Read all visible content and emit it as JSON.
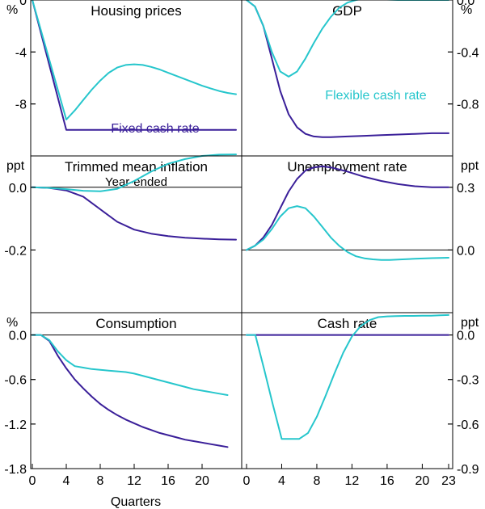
{
  "colors": {
    "fixed": "#3a1f99",
    "flexible": "#26c6cc"
  },
  "x_axis": {
    "label": "Quarters",
    "left_ticks": [
      "0",
      "4",
      "8",
      "12",
      "16",
      "20"
    ],
    "right_ticks": [
      "0",
      "4",
      "8",
      "12",
      "16",
      "20",
      "23"
    ]
  },
  "chart_data": [
    {
      "type": "line",
      "title": "Housing prices",
      "subtitle": "",
      "unit": "%",
      "unit_side": "left",
      "ylim": [
        -12,
        0
      ],
      "yticks": [
        0,
        -4,
        -8
      ],
      "ytick_labels": [
        "0",
        "-4",
        "-8"
      ],
      "xlim": [
        0,
        24
      ],
      "series": [
        {
          "name": "Fixed cash rate",
          "x": [
            0,
            1,
            2,
            3,
            4,
            5,
            6,
            8,
            10,
            12,
            14,
            16,
            18,
            20,
            22,
            24
          ],
          "values": [
            0,
            -2.5,
            -5,
            -7.5,
            -10,
            -10,
            -10,
            -10,
            -10,
            -10,
            -10,
            -10,
            -10,
            -10,
            -10,
            -10
          ]
        },
        {
          "name": "Flexible cash rate",
          "x": [
            0,
            1,
            2,
            3,
            4,
            5,
            6,
            7,
            8,
            9,
            10,
            11,
            12,
            13,
            14,
            15,
            16,
            17,
            18,
            19,
            20,
            21,
            22,
            23,
            24
          ],
          "values": [
            0,
            -2.3,
            -4.6,
            -6.9,
            -9.2,
            -8.5,
            -7.7,
            -6.9,
            -6.2,
            -5.6,
            -5.2,
            -5.0,
            -4.95,
            -5.0,
            -5.15,
            -5.35,
            -5.6,
            -5.85,
            -6.1,
            -6.35,
            -6.6,
            -6.8,
            -7.0,
            -7.15,
            -7.25
          ]
        }
      ],
      "annotations": [
        {
          "text": "Fixed cash rate",
          "series": "Fixed cash rate"
        }
      ]
    },
    {
      "type": "line",
      "title": "GDP",
      "subtitle": "",
      "unit": "%",
      "unit_side": "right",
      "ylim": [
        -1.2,
        0
      ],
      "yticks": [
        0,
        -0.4,
        -0.8
      ],
      "ytick_labels": [
        "0.0",
        "-0.4",
        "-0.8"
      ],
      "xlim": [
        0,
        24
      ],
      "series": [
        {
          "name": "Fixed cash rate",
          "x": [
            0,
            1,
            2,
            3,
            4,
            5,
            6,
            7,
            8,
            9,
            10,
            12,
            14,
            16,
            18,
            20,
            22,
            24
          ],
          "values": [
            0,
            -0.05,
            -0.2,
            -0.45,
            -0.7,
            -0.88,
            -0.98,
            -1.03,
            -1.05,
            -1.055,
            -1.055,
            -1.05,
            -1.045,
            -1.04,
            -1.035,
            -1.03,
            -1.025,
            -1.025
          ]
        },
        {
          "name": "Flexible cash rate",
          "x": [
            0,
            1,
            2,
            3,
            4,
            5,
            6,
            7,
            8,
            9,
            10,
            11,
            12,
            13,
            14,
            15,
            16,
            18,
            20,
            22,
            24
          ],
          "values": [
            0,
            -0.05,
            -0.2,
            -0.4,
            -0.55,
            -0.59,
            -0.55,
            -0.45,
            -0.33,
            -0.22,
            -0.13,
            -0.06,
            -0.02,
            0,
            0.01,
            0.01,
            0.005,
            0,
            0,
            0,
            0
          ]
        }
      ],
      "annotations": [
        {
          "text": "Flexible cash rate",
          "series": "Flexible cash rate"
        }
      ]
    },
    {
      "type": "line",
      "title": "Trimmed mean inflation",
      "subtitle": "Year-ended",
      "unit": "ppt",
      "unit_side": "left",
      "ylim": [
        -0.4,
        0.1
      ],
      "yticks": [
        0,
        -0.2
      ],
      "ytick_labels": [
        "0.0",
        "-0.2"
      ],
      "xlim": [
        0,
        24
      ],
      "series": [
        {
          "name": "Fixed cash rate",
          "x": [
            0,
            2,
            4,
            6,
            8,
            10,
            12,
            14,
            16,
            18,
            20,
            22,
            24
          ],
          "values": [
            0,
            -0.002,
            -0.01,
            -0.03,
            -0.07,
            -0.11,
            -0.135,
            -0.148,
            -0.156,
            -0.161,
            -0.164,
            -0.166,
            -0.167
          ]
        },
        {
          "name": "Flexible cash rate",
          "x": [
            0,
            2,
            4,
            6,
            8,
            10,
            12,
            14,
            16,
            18,
            20,
            22,
            24
          ],
          "values": [
            0,
            -0.002,
            -0.006,
            -0.011,
            -0.013,
            -0.005,
            0.02,
            0.05,
            0.075,
            0.09,
            0.1,
            0.104,
            0.105
          ]
        }
      ],
      "annotations": []
    },
    {
      "type": "line",
      "title": "Unemployment rate",
      "subtitle": "",
      "unit": "ppt",
      "unit_side": "right",
      "ylim": [
        -0.3,
        0.45
      ],
      "yticks": [
        0.3,
        0
      ],
      "ytick_labels": [
        "0.3",
        "0.0"
      ],
      "xlim": [
        0,
        24
      ],
      "series": [
        {
          "name": "Fixed cash rate",
          "x": [
            0,
            1,
            2,
            3,
            4,
            5,
            6,
            7,
            8,
            9,
            10,
            12,
            14,
            16,
            18,
            20,
            22,
            24
          ],
          "values": [
            0,
            0.02,
            0.06,
            0.12,
            0.2,
            0.28,
            0.34,
            0.38,
            0.395,
            0.4,
            0.395,
            0.375,
            0.35,
            0.33,
            0.315,
            0.305,
            0.3,
            0.3
          ]
        },
        {
          "name": "Flexible cash rate",
          "x": [
            0,
            1,
            2,
            3,
            4,
            5,
            6,
            7,
            8,
            9,
            10,
            11,
            12,
            13,
            14,
            15,
            16,
            17,
            18,
            20,
            22,
            24
          ],
          "values": [
            0,
            0.02,
            0.05,
            0.1,
            0.16,
            0.2,
            0.21,
            0.2,
            0.16,
            0.11,
            0.06,
            0.02,
            -0.01,
            -0.03,
            -0.04,
            -0.045,
            -0.048,
            -0.048,
            -0.046,
            -0.042,
            -0.039,
            -0.037
          ]
        }
      ],
      "annotations": []
    },
    {
      "type": "line",
      "title": "Consumption",
      "subtitle": "",
      "unit": "%",
      "unit_side": "left",
      "ylim": [
        -1.8,
        0.3
      ],
      "yticks": [
        0,
        -0.6,
        -1.2,
        -1.8
      ],
      "ytick_labels": [
        "0.0",
        "-0.6",
        "-1.2",
        "-1.8"
      ],
      "xlim": [
        0,
        24
      ],
      "series": [
        {
          "name": "Fixed cash rate",
          "x": [
            0,
            1,
            2,
            3,
            4,
            5,
            6,
            7,
            8,
            9,
            10,
            11,
            12,
            13,
            14,
            15,
            16,
            17,
            18,
            19,
            20,
            21,
            22,
            23
          ],
          "values": [
            0,
            0,
            -0.08,
            -0.28,
            -0.45,
            -0.6,
            -0.72,
            -0.83,
            -0.93,
            -1.01,
            -1.08,
            -1.14,
            -1.19,
            -1.24,
            -1.28,
            -1.32,
            -1.35,
            -1.38,
            -1.41,
            -1.43,
            -1.45,
            -1.47,
            -1.49,
            -1.51
          ]
        },
        {
          "name": "Flexible cash rate",
          "x": [
            0,
            1,
            2,
            3,
            4,
            5,
            6,
            7,
            8,
            9,
            10,
            11,
            12,
            13,
            14,
            15,
            16,
            17,
            18,
            19,
            20,
            21,
            22,
            23
          ],
          "values": [
            0,
            0,
            -0.07,
            -0.22,
            -0.34,
            -0.42,
            -0.44,
            -0.46,
            -0.47,
            -0.48,
            -0.49,
            -0.5,
            -0.52,
            -0.55,
            -0.58,
            -0.61,
            -0.64,
            -0.67,
            -0.7,
            -0.73,
            -0.75,
            -0.77,
            -0.79,
            -0.81
          ]
        }
      ],
      "annotations": []
    },
    {
      "type": "line",
      "title": "Cash rate",
      "subtitle": "",
      "unit": "ppt",
      "unit_side": "right",
      "ylim": [
        -0.9,
        0.15
      ],
      "yticks": [
        0,
        -0.3,
        -0.6,
        -0.9
      ],
      "ytick_labels": [
        "0.0",
        "-0.3",
        "-0.6",
        "-0.9"
      ],
      "xlim": [
        0,
        23
      ],
      "series": [
        {
          "name": "Fixed cash rate",
          "x": [
            0,
            23
          ],
          "values": [
            0,
            0
          ]
        },
        {
          "name": "Flexible cash rate",
          "x": [
            0,
            1,
            2,
            3,
            4,
            5,
            6,
            7,
            8,
            9,
            10,
            11,
            12,
            13,
            14,
            15,
            16,
            17,
            18,
            19,
            20,
            21,
            22,
            23
          ],
          "values": [
            0,
            0,
            -0.23,
            -0.47,
            -0.7,
            -0.7,
            -0.7,
            -0.66,
            -0.55,
            -0.41,
            -0.26,
            -0.12,
            -0.01,
            0.06,
            0.1,
            0.12,
            0.125,
            0.127,
            0.128,
            0.128,
            0.13,
            0.13,
            0.132,
            0.134
          ]
        }
      ],
      "annotations": []
    }
  ]
}
